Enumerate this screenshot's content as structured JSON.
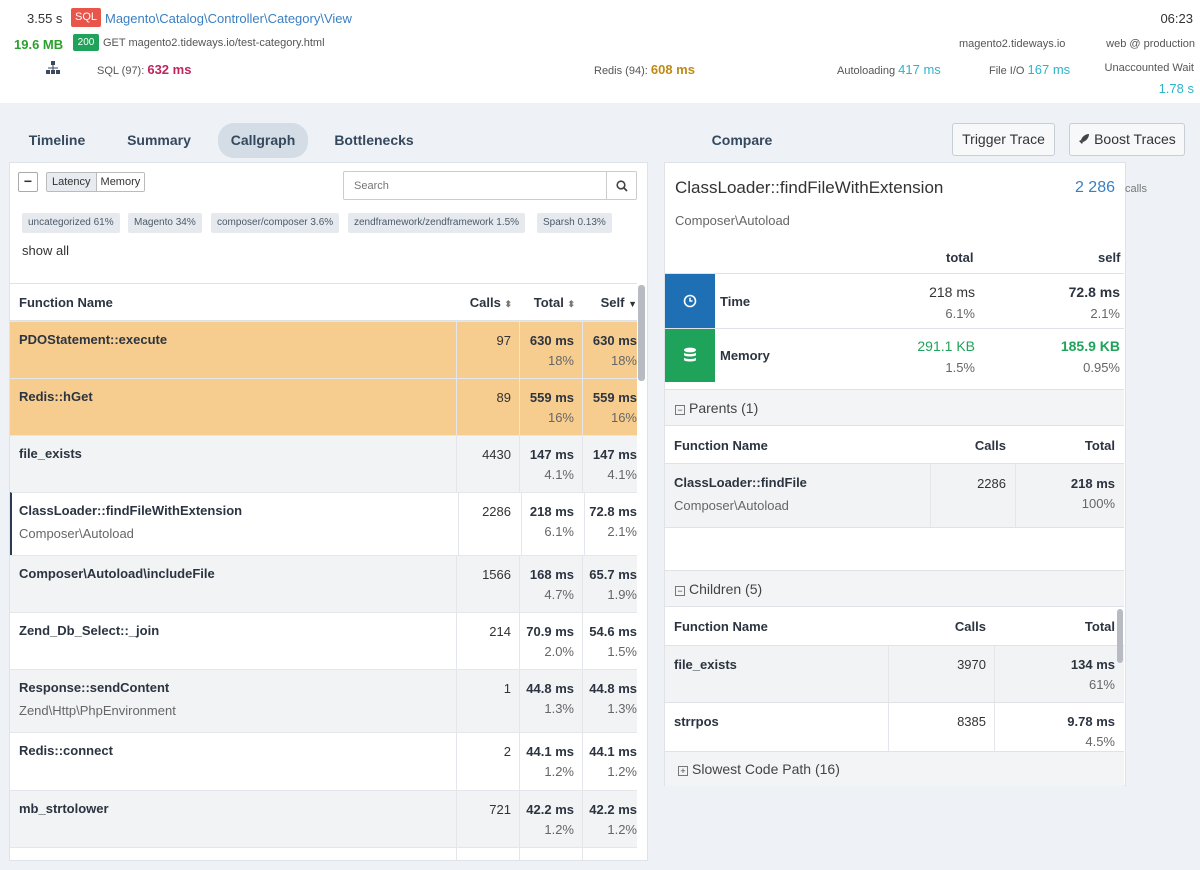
{
  "header": {
    "duration": "3.55 s",
    "sql_badge": "SQL",
    "controller": "Magento\\Catalog\\Controller\\Category\\View",
    "time": "06:23",
    "memory": "19.6 MB",
    "status_code": "200",
    "request": "GET magento2.tideways.io/test-category.html",
    "host": "magento2.tideways.io",
    "env": "web @ production",
    "sql_label": "SQL (97):",
    "sql_value": "632 ms",
    "redis_label": "Redis (94):",
    "redis_value": "608 ms",
    "autoload_label": "Autoloading",
    "autoload_value": "417 ms",
    "fileio_label": "File I/O",
    "fileio_value": "167 ms",
    "unaccounted_label": "Unaccounted Wait",
    "unaccounted_value": "1.78 s"
  },
  "tabs": [
    "Timeline",
    "Summary",
    "Callgraph",
    "Bottlenecks",
    "Compare"
  ],
  "actions": {
    "trigger": "Trigger Trace",
    "boost": "Boost Traces"
  },
  "left": {
    "collapse": "−",
    "toggle": [
      "Latency",
      "Memory"
    ],
    "search_placeholder": "Search",
    "chips": [
      {
        "name": "uncategorized",
        "pct": "61%"
      },
      {
        "name": "Magento",
        "pct": "34%"
      },
      {
        "name": "composer/composer",
        "pct": "3.6%"
      },
      {
        "name": "zendframework/zendframework",
        "pct": "1.5%"
      },
      {
        "name": "Sparsh",
        "pct": "0.13%"
      }
    ],
    "show_all": "show all",
    "columns": {
      "name": "Function Name",
      "calls": "Calls",
      "total": "Total",
      "self": "Self"
    },
    "rows": [
      {
        "fn": "PDOStatement::execute",
        "ns": "",
        "calls": "97",
        "total": "630 ms",
        "total_pct": "18%",
        "self": "630 ms",
        "self_pct": "18%"
      },
      {
        "fn": "Redis::hGet",
        "ns": "",
        "calls": "89",
        "total": "559 ms",
        "total_pct": "16%",
        "self": "559 ms",
        "self_pct": "16%"
      },
      {
        "fn": "file_exists",
        "ns": "",
        "calls": "4430",
        "total": "147 ms",
        "total_pct": "4.1%",
        "self": "147 ms",
        "self_pct": "4.1%"
      },
      {
        "fn": "ClassLoader::findFileWithExtension",
        "ns": "Composer\\Autoload",
        "calls": "2286",
        "total": "218 ms",
        "total_pct": "6.1%",
        "self": "72.8 ms",
        "self_pct": "2.1%"
      },
      {
        "fn": "Composer\\Autoload\\includeFile",
        "ns": "",
        "calls": "1566",
        "total": "168 ms",
        "total_pct": "4.7%",
        "self": "65.7 ms",
        "self_pct": "1.9%"
      },
      {
        "fn": "Zend_Db_Select::_join",
        "ns": "",
        "calls": "214",
        "total": "70.9 ms",
        "total_pct": "2.0%",
        "self": "54.6 ms",
        "self_pct": "1.5%"
      },
      {
        "fn": "Response::sendContent",
        "ns": "Zend\\Http\\PhpEnvironment",
        "calls": "1",
        "total": "44.8 ms",
        "total_pct": "1.3%",
        "self": "44.8 ms",
        "self_pct": "1.3%"
      },
      {
        "fn": "Redis::connect",
        "ns": "",
        "calls": "2",
        "total": "44.1 ms",
        "total_pct": "1.2%",
        "self": "44.1 ms",
        "self_pct": "1.2%"
      },
      {
        "fn": "mb_strtolower",
        "ns": "",
        "calls": "721",
        "total": "42.2 ms",
        "total_pct": "1.2%",
        "self": "42.2 ms",
        "self_pct": "1.2%"
      }
    ]
  },
  "detail": {
    "title": "ClassLoader::findFileWithExtension",
    "calls_count": "2 286",
    "calls_label": "calls",
    "namespace": "Composer\\Autoload",
    "col_total": "total",
    "col_self": "self",
    "time_label": "Time",
    "time_total": "218 ms",
    "time_total_pct": "6.1%",
    "time_self": "72.8 ms",
    "time_self_pct": "2.1%",
    "memory_label": "Memory",
    "mem_total": "291.1 KB",
    "mem_total_pct": "1.5%",
    "mem_self": "185.9 KB",
    "mem_self_pct": "0.95%",
    "parents_title": "Parents (1)",
    "parents_cols": {
      "name": "Function Name",
      "calls": "Calls",
      "total": "Total"
    },
    "parents": [
      {
        "fn": "ClassLoader::findFile",
        "ns": "Composer\\Autoload",
        "calls": "2286",
        "total": "218 ms",
        "pct": "100%"
      }
    ],
    "children_title": "Children (5)",
    "children_cols": {
      "name": "Function Name",
      "calls": "Calls",
      "total": "Total"
    },
    "children": [
      {
        "fn": "file_exists",
        "calls": "3970",
        "total": "134 ms",
        "pct": "61%"
      },
      {
        "fn": "strrpos",
        "calls": "8385",
        "total": "9.78 ms",
        "pct": "4.5%"
      }
    ],
    "slowest_title": "Slowest Code Path (16)"
  },
  "colors": {
    "highlight_row": "#f7cd8f",
    "time_tile": "#1f6fb5",
    "memory_tile": "#1fa35a",
    "sql_badge": "#e8564b",
    "status_badge": "#1fa35a"
  }
}
